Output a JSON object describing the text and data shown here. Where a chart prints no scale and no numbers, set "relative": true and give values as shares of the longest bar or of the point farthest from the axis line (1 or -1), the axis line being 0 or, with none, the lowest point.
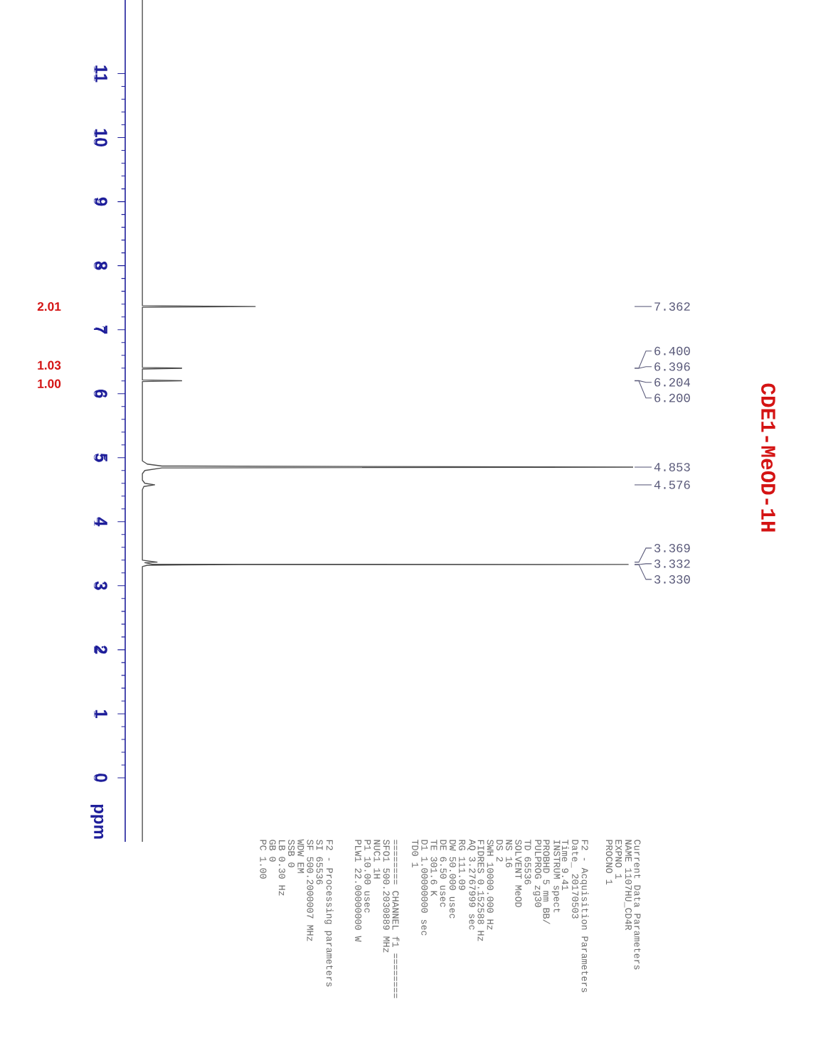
{
  "chart_data": {
    "type": "line",
    "title": "CDE1-MeOD-1H",
    "ylabel": "ppm",
    "relative": true,
    "orientation": "horizontal",
    "color": "#4a4a4a",
    "ylim": [
      -1.0,
      12.15
    ],
    "yticks": [
      0,
      1,
      2,
      3,
      4,
      5,
      6,
      7,
      8,
      9,
      10,
      11
    ],
    "x": [
      12.15,
      7.375,
      7.362,
      7.35,
      6.41,
      6.4,
      6.398,
      6.396,
      6.386,
      6.214,
      6.204,
      6.202,
      6.2,
      6.19,
      4.95,
      4.9,
      4.87,
      4.853,
      4.84,
      4.8,
      4.75,
      4.65,
      4.6,
      4.576,
      4.55,
      4.5,
      3.4,
      3.369,
      3.36,
      3.335,
      3.332,
      3.331,
      3.33,
      3.32,
      3.3,
      -1.0
    ],
    "values": [
      0,
      0,
      0.23,
      0,
      0,
      0.08,
      0.05,
      0.08,
      0,
      0,
      0.08,
      0.05,
      0.08,
      0,
      0,
      0.01,
      0.04,
      1.0,
      0.04,
      0.005,
      0,
      0,
      0.005,
      0.025,
      0.003,
      0,
      0,
      0.03,
      0.005,
      0.02,
      0.99,
      0.1,
      0.2,
      0.01,
      0,
      0
    ],
    "annotations": [
      "7.362",
      "6.400",
      "6.396",
      "6.204",
      "6.200",
      "4.853",
      "4.576",
      "3.369",
      "3.332",
      "3.330",
      "2.01",
      "1.03",
      "1.00",
      "Current Data Parameters",
      "NAME 1107HU_CD4R",
      "EXPNO 1",
      "PROCNO 1",
      "F2 - Acquisition Parameters",
      "Date_ 20170503",
      "Time 9.41",
      "INSTRUM spect",
      "PROBHD 5 mm BB/",
      "PULPROG zg30",
      "TD 65536",
      "SOLVENT MeOD",
      "NS 16",
      "DS 2",
      "SWH 10000.000 Hz",
      "FIDRES 0.152588 Hz",
      "AQ 3.2767999 sec",
      "RG 111.09",
      "DW 50.000 usec",
      "DE 6.50 usec",
      "TE 301.6 K",
      "D1 1.00000000 sec",
      "TD0 1",
      "======== CHANNEL f1 ========",
      "SFO1 500.2030889 MHz",
      "NUC1 1H",
      "P1 10.00 usec",
      "PLW1 22.00000000 W",
      "F2 - Processing parameters",
      "SI 65536",
      "SF 500.2000007 MHz",
      "WDW EM",
      "SSB 0",
      "LB 0.30 Hz",
      "GB 0",
      "PC 1.00"
    ]
  }
}
